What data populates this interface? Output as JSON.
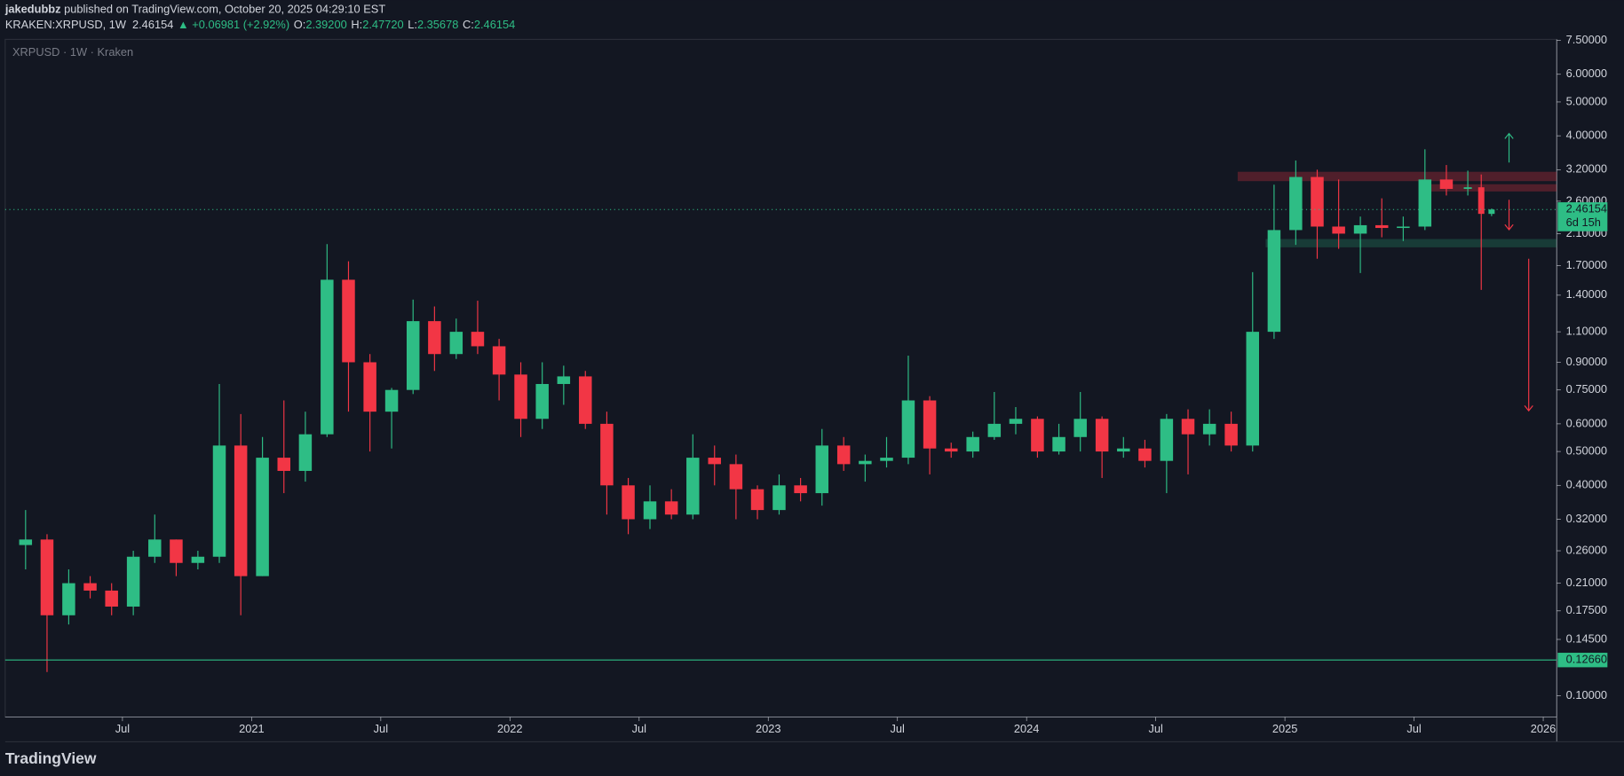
{
  "header": {
    "author": "jakedubbz",
    "published": " published on TradingView.com, October 20, 2025 04:29:10 EST",
    "symbol": "KRAKEN:XRPUSD, 1W",
    "last": "2.46154",
    "change": "▲ +0.06981 (+2.92%)",
    "o_key": "O:",
    "o_val": "2.39200",
    "h_key": "H:",
    "h_val": "2.47720",
    "l_key": "L:",
    "l_val": "2.35678",
    "c_key": "C:",
    "c_val": "2.46154"
  },
  "footer": {
    "brand": "TradingView"
  },
  "chart_data": {
    "type": "candlestick",
    "title": "XRPUSD · 1W · Kraken",
    "log_scale": true,
    "up_color": "#2ebd85",
    "down_color": "#f23645",
    "x": [
      2020.125,
      2020.208,
      2020.292,
      2020.375,
      2020.458,
      2020.542,
      2020.625,
      2020.708,
      2020.792,
      2020.875,
      2020.958,
      2021.042,
      2021.125,
      2021.208,
      2021.292,
      2021.375,
      2021.458,
      2021.542,
      2021.625,
      2021.708,
      2021.792,
      2021.875,
      2021.958,
      2022.042,
      2022.125,
      2022.208,
      2022.292,
      2022.375,
      2022.458,
      2022.542,
      2022.625,
      2022.708,
      2022.792,
      2022.875,
      2022.958,
      2023.042,
      2023.125,
      2023.208,
      2023.292,
      2023.375,
      2023.458,
      2023.542,
      2023.625,
      2023.708,
      2023.792,
      2023.875,
      2023.958,
      2024.042,
      2024.125,
      2024.208,
      2024.292,
      2024.375,
      2024.458,
      2024.542,
      2024.625,
      2024.708,
      2024.792,
      2024.875,
      2024.958,
      2025.042,
      2025.125,
      2025.208,
      2025.292,
      2025.375,
      2025.458,
      2025.542,
      2025.625,
      2025.708,
      2025.76,
      2025.8
    ],
    "open": [
      0.27,
      0.28,
      0.17,
      0.21,
      0.2,
      0.18,
      0.25,
      0.28,
      0.24,
      0.25,
      0.52,
      0.22,
      0.48,
      0.44,
      0.56,
      1.55,
      0.9,
      0.65,
      0.75,
      1.18,
      0.95,
      1.1,
      1.0,
      0.83,
      0.62,
      0.78,
      0.82,
      0.6,
      0.4,
      0.32,
      0.36,
      0.33,
      0.48,
      0.46,
      0.39,
      0.34,
      0.4,
      0.38,
      0.52,
      0.46,
      0.47,
      0.48,
      0.7,
      0.51,
      0.5,
      0.55,
      0.6,
      0.62,
      0.5,
      0.55,
      0.62,
      0.5,
      0.51,
      0.47,
      0.62,
      0.56,
      0.6,
      0.52,
      1.1,
      2.15,
      3.05,
      2.2,
      2.1,
      2.22,
      2.18,
      2.2,
      3.0,
      2.82,
      2.85,
      2.392
    ],
    "high": [
      0.34,
      0.29,
      0.23,
      0.22,
      0.21,
      0.26,
      0.33,
      0.28,
      0.26,
      0.78,
      0.64,
      0.55,
      0.7,
      0.65,
      1.96,
      1.75,
      0.95,
      0.76,
      1.36,
      1.3,
      1.2,
      1.35,
      1.05,
      0.9,
      0.9,
      0.88,
      0.85,
      0.65,
      0.42,
      0.4,
      0.39,
      0.56,
      0.52,
      0.49,
      0.4,
      0.43,
      0.42,
      0.58,
      0.55,
      0.49,
      0.55,
      0.94,
      0.72,
      0.53,
      0.57,
      0.74,
      0.67,
      0.63,
      0.6,
      0.74,
      0.63,
      0.55,
      0.54,
      0.64,
      0.66,
      0.66,
      0.65,
      1.63,
      2.9,
      3.4,
      3.2,
      3.0,
      2.35,
      2.65,
      2.35,
      3.66,
      3.3,
      3.18,
      3.1,
      2.4772
    ],
    "low": [
      0.23,
      0.117,
      0.16,
      0.19,
      0.17,
      0.17,
      0.24,
      0.22,
      0.23,
      0.24,
      0.17,
      0.22,
      0.38,
      0.41,
      0.55,
      0.65,
      0.5,
      0.51,
      0.73,
      0.85,
      0.92,
      0.95,
      0.7,
      0.55,
      0.58,
      0.68,
      0.58,
      0.33,
      0.29,
      0.3,
      0.32,
      0.32,
      0.4,
      0.32,
      0.32,
      0.33,
      0.36,
      0.35,
      0.44,
      0.41,
      0.45,
      0.46,
      0.43,
      0.48,
      0.48,
      0.54,
      0.56,
      0.48,
      0.49,
      0.5,
      0.42,
      0.48,
      0.45,
      0.38,
      0.43,
      0.52,
      0.5,
      0.5,
      1.05,
      1.95,
      1.78,
      1.9,
      1.62,
      2.05,
      2.0,
      2.15,
      2.7,
      2.7,
      1.45,
      2.35678
    ],
    "close": [
      0.28,
      0.17,
      0.21,
      0.2,
      0.18,
      0.25,
      0.28,
      0.24,
      0.25,
      0.52,
      0.22,
      0.48,
      0.44,
      0.56,
      1.55,
      0.9,
      0.65,
      0.75,
      1.18,
      0.95,
      1.1,
      1.0,
      0.83,
      0.62,
      0.78,
      0.82,
      0.6,
      0.4,
      0.32,
      0.36,
      0.33,
      0.48,
      0.46,
      0.39,
      0.34,
      0.4,
      0.38,
      0.52,
      0.46,
      0.47,
      0.48,
      0.7,
      0.51,
      0.5,
      0.55,
      0.6,
      0.62,
      0.5,
      0.55,
      0.62,
      0.5,
      0.51,
      0.47,
      0.62,
      0.56,
      0.6,
      0.52,
      1.1,
      2.15,
      3.05,
      2.2,
      2.1,
      2.22,
      2.18,
      2.2,
      3.0,
      2.82,
      2.85,
      2.392,
      2.46154
    ],
    "xlim": [
      2020.046,
      2026.052
    ],
    "xticks": [
      {
        "value": 2020.5,
        "label": "Jul"
      },
      2021,
      {
        "value": 2021.5,
        "label": "Jul"
      },
      2022,
      {
        "value": 2022.5,
        "label": "Jul"
      },
      2023,
      {
        "value": 2023.5,
        "label": "Jul"
      },
      2024,
      {
        "value": 2024.5,
        "label": "Jul"
      },
      2025,
      {
        "value": 2025.5,
        "label": "Jul"
      },
      2026
    ],
    "ylim": [
      0.087,
      7.55
    ],
    "yticks": [
      {
        "value": 7.5,
        "label": "7.50000"
      },
      {
        "value": 6,
        "label": "6.00000"
      },
      {
        "value": 5,
        "label": "5.00000"
      },
      {
        "value": 4,
        "label": "4.00000"
      },
      {
        "value": 3.2,
        "label": "3.20000"
      },
      {
        "value": 2.6,
        "label": "2.60000"
      },
      {
        "value": 2.1,
        "label": "2.10000"
      },
      {
        "value": 1.7,
        "label": "1.70000"
      },
      {
        "value": 1.4,
        "label": "1.40000"
      },
      {
        "value": 1.1,
        "label": "1.10000"
      },
      {
        "value": 0.9,
        "label": "0.90000"
      },
      {
        "value": 0.75,
        "label": "0.75000"
      },
      {
        "value": 0.6,
        "label": "0.60000"
      },
      {
        "value": 0.5,
        "label": "0.50000"
      },
      {
        "value": 0.4,
        "label": "0.40000"
      },
      {
        "value": 0.32,
        "label": "0.32000"
      },
      {
        "value": 0.26,
        "label": "0.26000"
      },
      {
        "value": 0.21,
        "label": "0.21000"
      },
      {
        "value": 0.175,
        "label": "0.17500"
      },
      {
        "value": 0.145,
        "label": "0.14500"
      },
      {
        "value": 0.1,
        "label": "0.10000"
      }
    ],
    "last_price": {
      "value": 2.46154,
      "label": "2.46154"
    },
    "countdown": "6d 15h",
    "horizontal_line": {
      "value": 0.1266,
      "label": "0.12660",
      "color": "#2ebd85"
    }
  }
}
